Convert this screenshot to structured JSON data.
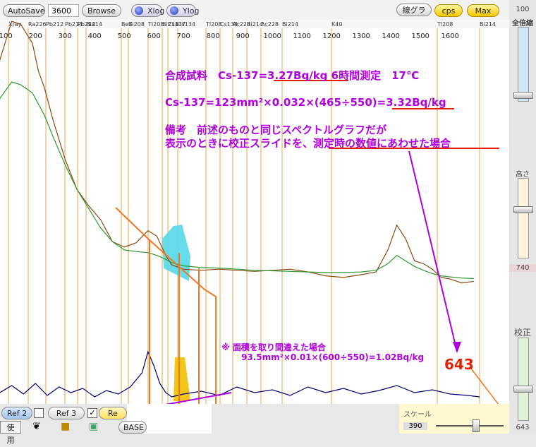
{
  "toolbar": {
    "autosave_label": "AutoSave",
    "time_value": "3600",
    "browse_label": "Browse",
    "xlog_label": "Xlog",
    "ylog_label": "Ylog",
    "line_graph_label": "線グラフ",
    "cps_label": "cps",
    "max_label": "Max"
  },
  "right_panel": {
    "top_value": "100",
    "full_scale_label": "全倍縮",
    "height_label": "高さ",
    "height_value": "740",
    "calibration_label": "校正",
    "calibration_value": "643"
  },
  "bottom_bar": {
    "ref2_label": "Ref 2",
    "ref3_label": "Ref 3",
    "ref_label": "Re",
    "use_label": "使用",
    "scale_label": "スケール",
    "scale_value": "390",
    "base_label": "BASE"
  },
  "chart_data": {
    "type": "line",
    "xlabel": "",
    "ylabel": "",
    "x_ticks": [
      "100",
      "200",
      "300",
      "400",
      "500",
      "600",
      "700",
      "800",
      "900",
      "1000",
      "1100",
      "1200",
      "1300",
      "1400",
      "1500",
      "1600"
    ],
    "nuclide_labels": [
      "Xray",
      "Ra226",
      "Pb212",
      "Pb214",
      "Pb214",
      "Bi214",
      "Be7",
      "Bi208",
      "Tl208",
      "Bi214",
      "Cs137",
      "Cs134",
      "Tl208",
      "Cs134",
      "Ac228",
      "Bi214",
      "Ac228",
      "Bi214",
      "K40",
      "Tl208",
      "Bi214"
    ],
    "series": [
      {
        "name": "",
        "color": "#8b4a14",
        "role": "measured spectrum",
        "x": [
          40,
          80,
          120,
          150,
          190,
          210,
          230,
          260,
          300,
          340,
          380,
          420,
          460,
          500,
          540,
          580,
          610,
          640,
          660,
          700,
          760,
          820,
          880,
          940,
          1000,
          1060,
          1120,
          1180,
          1240,
          1300,
          1350,
          1390,
          1420,
          1450,
          1480,
          1510,
          1540,
          1570,
          1600,
          1640,
          1680
        ],
        "y": [
          200,
          440,
          510,
          505,
          470,
          420,
          390,
          330,
          260,
          205,
          175,
          150,
          110,
          100,
          108,
          130,
          120,
          85,
          68,
          60,
          58,
          60,
          58,
          56,
          58,
          60,
          55,
          48,
          45,
          50,
          55,
          95,
          140,
          115,
          75,
          70,
          60,
          45,
          42,
          35,
          38
        ]
      },
      {
        "name": "",
        "color": "#2f9a2f",
        "role": "reference spectrum",
        "x": [
          40,
          80,
          120,
          150,
          190,
          210,
          230,
          260,
          300,
          340,
          380,
          420,
          460,
          500,
          540,
          580,
          610,
          640,
          660,
          700,
          760,
          820,
          880,
          940,
          1000,
          1060,
          1120,
          1180,
          1240,
          1300,
          1350,
          1390,
          1420,
          1450,
          1480,
          1510,
          1540,
          1570,
          1600,
          1640,
          1680
        ],
        "y": [
          180,
          370,
          400,
          395,
          380,
          360,
          340,
          300,
          250,
          205,
          170,
          135,
          110,
          95,
          92,
          90,
          85,
          78,
          72,
          66,
          63,
          62,
          60,
          58,
          57,
          56,
          55,
          54,
          54,
          55,
          58,
          70,
          85,
          75,
          65,
          58,
          52,
          48,
          46,
          44,
          43
        ]
      },
      {
        "name": "",
        "color": "#000070",
        "role": "difference trace",
        "x": [
          40,
          80,
          120,
          160,
          200,
          240,
          280,
          320,
          360,
          400,
          440,
          480,
          520,
          560,
          580,
          600,
          620,
          640,
          660,
          700,
          760,
          820,
          880,
          940,
          1000,
          1060,
          1120,
          1180,
          1240,
          1300,
          1360,
          1420,
          1480,
          1540,
          1600,
          1660,
          1700
        ],
        "y": [
          20,
          12,
          22,
          10,
          25,
          8,
          20,
          12,
          18,
          6,
          15,
          10,
          20,
          40,
          70,
          50,
          25,
          12,
          6,
          10,
          14,
          8,
          20,
          12,
          16,
          8,
          20,
          12,
          18,
          10,
          15,
          22,
          12,
          16,
          10,
          8,
          6
        ]
      }
    ],
    "annotations": {
      "line1": "合成試料　Cs-137=3.27Bq/kg 6時間測定　17℃",
      "line2": "Cs-137=123mm²×0.032×(465÷550)=3.32Bq/kg",
      "line3": "備考　前述のものと同じスペクトルグラフだが",
      "line4": "表示のときに校正スライドを、測定時の数値にあわせた場合",
      "note1": "※ 面積を取り間違えた場合",
      "note2": "93.5mm²×0.01×(600÷550)=1.02Bq/kg",
      "peak_label": "643"
    },
    "colors": {
      "grid_line": "#e8a64a",
      "highlight_area": "#55d8e8",
      "wrong_area": "#f0c000",
      "annotation": "#b000e0",
      "outline": "#f07820",
      "label_red": "#e02000"
    }
  }
}
